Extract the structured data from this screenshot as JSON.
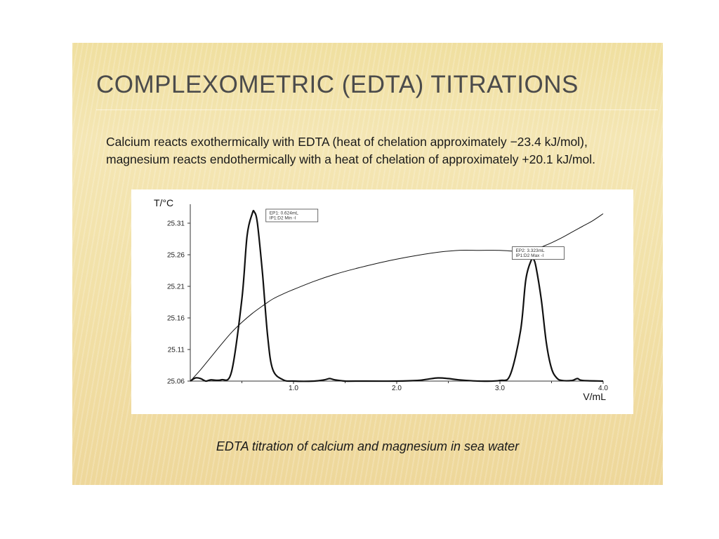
{
  "slide": {
    "title": "COMPLEXOMETRIC (EDTA) TITRATIONS",
    "body": "Calcium reacts exothermically with EDTA (heat of chelation approximately −23.4 kJ/mol), magnesium reacts endothermically with a heat of chelation of approximately +20.1 kJ/mol.",
    "caption": "EDTA titration of calcium and magnesium in sea water",
    "colors": {
      "background": "#f2e1a8",
      "title": "#4b4b4b",
      "text": "#1a1a1a",
      "plot_line": "#111111"
    }
  },
  "chart_data": {
    "type": "line",
    "title": "",
    "xlabel": "V/mL",
    "ylabel": "T/°C",
    "xlim": [
      0,
      4.0
    ],
    "ylim": [
      25.06,
      25.34
    ],
    "x_ticks": [
      "1.0",
      "2.0",
      "3.0",
      "4.0"
    ],
    "y_ticks": [
      "25.06",
      "25.11",
      "25.16",
      "25.21",
      "25.26",
      "25.31"
    ],
    "grid": false,
    "series": [
      {
        "role": "temperature",
        "x": [
          0,
          0.1,
          0.2,
          0.3,
          0.4,
          0.5,
          0.6,
          0.7,
          0.8,
          0.9,
          1.0,
          1.2,
          1.4,
          1.6,
          1.8,
          2.0,
          2.2,
          2.4,
          2.6,
          2.8,
          3.0,
          3.1,
          3.2,
          3.325,
          3.4,
          3.5,
          3.6,
          3.7,
          3.8,
          3.9,
          4.0
        ],
        "y": [
          25.06,
          25.078,
          25.098,
          25.118,
          25.137,
          25.153,
          25.167,
          25.179,
          25.19,
          25.198,
          25.205,
          25.218,
          25.229,
          25.238,
          25.246,
          25.253,
          25.259,
          25.264,
          25.267,
          25.267,
          25.267,
          25.266,
          25.265,
          25.266,
          25.272,
          25.279,
          25.287,
          25.296,
          25.305,
          25.314,
          25.325
        ],
        "stroke_width": 1
      },
      {
        "role": "second derivative",
        "x": [
          0,
          0.05,
          0.1,
          0.15,
          0.2,
          0.3,
          0.4,
          0.5,
          0.55,
          0.6,
          0.62,
          0.65,
          0.7,
          0.75,
          0.8,
          0.9,
          1.0,
          1.2,
          1.3,
          1.35,
          1.4,
          1.5,
          1.6,
          2.0,
          2.2,
          2.3,
          2.4,
          2.5,
          2.6,
          2.8,
          3.0,
          3.1,
          3.2,
          3.25,
          3.3,
          3.325,
          3.35,
          3.4,
          3.45,
          3.5,
          3.55,
          3.6,
          3.7,
          3.75,
          3.8,
          4.0
        ],
        "y": [
          25.06,
          25.065,
          25.064,
          25.06,
          25.062,
          25.062,
          25.075,
          25.19,
          25.29,
          25.325,
          25.328,
          25.31,
          25.23,
          25.13,
          25.078,
          25.062,
          25.06,
          25.06,
          25.062,
          25.064,
          25.062,
          25.06,
          25.06,
          25.06,
          25.061,
          25.063,
          25.065,
          25.064,
          25.062,
          25.06,
          25.061,
          25.07,
          25.14,
          25.22,
          25.25,
          25.253,
          25.24,
          25.19,
          25.12,
          25.08,
          25.065,
          25.061,
          25.061,
          25.064,
          25.061,
          25.06
        ],
        "stroke_width": 2.2
      }
    ],
    "annotations": [
      {
        "lines": [
          "EP1: 0.624mL",
          "IP1:D2 Min -I"
        ],
        "x": 0.624
      },
      {
        "lines": [
          "EP2: 3.323mL",
          "IP1:D2 Max -I"
        ],
        "x": 3.323
      }
    ]
  }
}
